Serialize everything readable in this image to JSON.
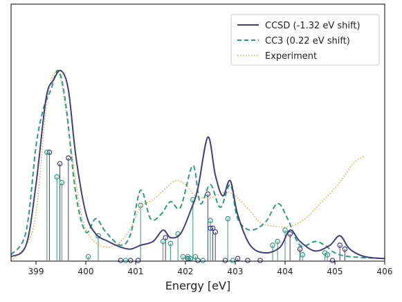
{
  "chart_data": {
    "type": "line",
    "xlabel": "Energy [eV]",
    "ylabel": "",
    "xlim": [
      398.5,
      406.0
    ],
    "ylim": [
      0,
      1.0
    ],
    "xticks": [
      399,
      400,
      401,
      402,
      403,
      404,
      405,
      406
    ],
    "grid": false,
    "legend_position": "top-right",
    "series": [
      {
        "name": "CCSD (-1.32 eV shift)",
        "style": "solid",
        "color": "#3f3f7d",
        "points": [
          [
            398.5,
            0.02
          ],
          [
            398.8,
            0.08
          ],
          [
            399.0,
            0.4
          ],
          [
            399.2,
            0.85
          ],
          [
            399.35,
            0.95
          ],
          [
            399.5,
            1.0
          ],
          [
            399.65,
            0.9
          ],
          [
            399.8,
            0.55
          ],
          [
            400.0,
            0.25
          ],
          [
            400.2,
            0.14
          ],
          [
            400.45,
            0.1
          ],
          [
            400.7,
            0.07
          ],
          [
            400.9,
            0.06
          ],
          [
            401.1,
            0.08
          ],
          [
            401.35,
            0.1
          ],
          [
            401.55,
            0.16
          ],
          [
            401.7,
            0.12
          ],
          [
            401.9,
            0.14
          ],
          [
            402.1,
            0.26
          ],
          [
            402.25,
            0.38
          ],
          [
            402.45,
            0.65
          ],
          [
            402.6,
            0.45
          ],
          [
            402.75,
            0.34
          ],
          [
            402.9,
            0.42
          ],
          [
            403.05,
            0.24
          ],
          [
            403.3,
            0.08
          ],
          [
            403.6,
            0.04
          ],
          [
            403.9,
            0.07
          ],
          [
            404.1,
            0.16
          ],
          [
            404.3,
            0.1
          ],
          [
            404.6,
            0.05
          ],
          [
            404.9,
            0.08
          ],
          [
            405.1,
            0.13
          ],
          [
            405.3,
            0.06
          ],
          [
            405.6,
            0.02
          ],
          [
            406.0,
            0.01
          ]
        ]
      },
      {
        "name": "CC3 (0.22 eV shift)",
        "style": "dashed",
        "color": "#2a9d7e",
        "points": [
          [
            398.5,
            0.03
          ],
          [
            398.8,
            0.15
          ],
          [
            399.0,
            0.6
          ],
          [
            399.15,
            0.8
          ],
          [
            399.3,
            0.9
          ],
          [
            399.45,
            1.0
          ],
          [
            399.6,
            0.82
          ],
          [
            399.8,
            0.35
          ],
          [
            400.0,
            0.15
          ],
          [
            400.2,
            0.22
          ],
          [
            400.4,
            0.15
          ],
          [
            400.7,
            0.08
          ],
          [
            400.9,
            0.14
          ],
          [
            401.1,
            0.37
          ],
          [
            401.3,
            0.22
          ],
          [
            401.5,
            0.24
          ],
          [
            401.7,
            0.31
          ],
          [
            401.9,
            0.28
          ],
          [
            402.15,
            0.5
          ],
          [
            402.3,
            0.3
          ],
          [
            402.5,
            0.4
          ],
          [
            402.7,
            0.28
          ],
          [
            402.9,
            0.4
          ],
          [
            403.05,
            0.22
          ],
          [
            403.3,
            0.16
          ],
          [
            403.6,
            0.2
          ],
          [
            403.85,
            0.3
          ],
          [
            404.05,
            0.22
          ],
          [
            404.3,
            0.08
          ],
          [
            404.6,
            0.1
          ],
          [
            404.8,
            0.08
          ],
          [
            405.0,
            0.04
          ],
          [
            405.3,
            0.02
          ],
          [
            406.0,
            0.01
          ]
        ]
      },
      {
        "name": "Experiment",
        "style": "dotted",
        "color": "#f0a030",
        "points": [
          [
            398.5,
            0.0
          ],
          [
            398.8,
            0.08
          ],
          [
            399.0,
            0.25
          ],
          [
            399.2,
            0.8
          ],
          [
            399.35,
            0.98
          ],
          [
            399.5,
            0.95
          ],
          [
            399.7,
            0.6
          ],
          [
            399.9,
            0.25
          ],
          [
            400.1,
            0.12
          ],
          [
            400.4,
            0.07
          ],
          [
            400.7,
            0.1
          ],
          [
            400.9,
            0.17
          ],
          [
            401.1,
            0.28
          ],
          [
            401.35,
            0.32
          ],
          [
            401.6,
            0.38
          ],
          [
            401.8,
            0.42
          ],
          [
            402.0,
            0.4
          ],
          [
            402.2,
            0.34
          ],
          [
            402.5,
            0.33
          ],
          [
            402.8,
            0.36
          ],
          [
            403.0,
            0.34
          ],
          [
            403.3,
            0.26
          ],
          [
            403.5,
            0.2
          ],
          [
            403.8,
            0.18
          ],
          [
            404.1,
            0.18
          ],
          [
            404.4,
            0.22
          ],
          [
            404.7,
            0.3
          ],
          [
            405.0,
            0.38
          ],
          [
            405.2,
            0.45
          ],
          [
            405.4,
            0.52
          ],
          [
            405.6,
            0.55
          ]
        ]
      }
    ],
    "sticks": [
      {
        "name": "CCSD sticks",
        "color": "#3f3f7d",
        "x": [
          399.27,
          399.48,
          399.65,
          400.7,
          400.9,
          401.05,
          401.6,
          402.05,
          402.25,
          402.45,
          402.5,
          402.55,
          402.6,
          402.8,
          403.05,
          403.25,
          403.5,
          404.1,
          404.3,
          404.95,
          405.1,
          405.2
        ],
        "y": [
          0.57,
          0.51,
          0.54,
          0.0,
          0.0,
          0.0,
          0.12,
          0.01,
          0.0,
          0.35,
          0.17,
          0.17,
          0.15,
          0.0,
          0.01,
          0.0,
          0.0,
          0.14,
          0.06,
          0.0,
          0.08,
          0.06
        ]
      },
      {
        "name": "CC3 sticks",
        "color": "#2a9d7e",
        "x": [
          399.22,
          399.42,
          399.52,
          400.05,
          400.25,
          400.8,
          401.1,
          401.55,
          401.7,
          401.85,
          401.95,
          402.05,
          402.1,
          402.15,
          402.2,
          402.35,
          402.5,
          402.85,
          402.95,
          403.75,
          403.85,
          404.0,
          404.35,
          404.8,
          404.85
        ],
        "y": [
          0.57,
          0.44,
          0.41,
          0.02,
          0.13,
          0.0,
          0.29,
          0.1,
          0.09,
          0.14,
          0.02,
          0.02,
          0.01,
          0.32,
          0.02,
          0.0,
          0.21,
          0.22,
          0.0,
          0.08,
          0.1,
          0.16,
          0.03,
          0.04,
          0.03
        ]
      }
    ]
  }
}
